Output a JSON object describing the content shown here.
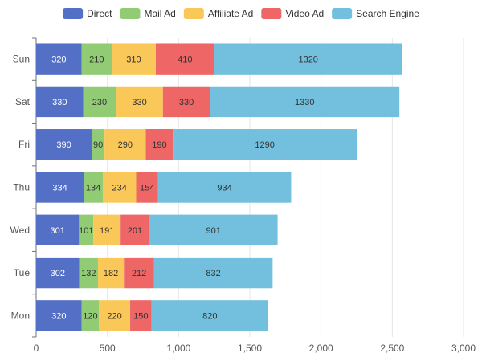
{
  "chart_data": {
    "type": "bar",
    "orientation": "horizontal",
    "stacked": true,
    "categories": [
      "Mon",
      "Tue",
      "Wed",
      "Thu",
      "Fri",
      "Sat",
      "Sun"
    ],
    "series": [
      {
        "name": "Direct",
        "color": "#5470c6",
        "label_color": "#ffffff",
        "values": [
          320,
          302,
          301,
          334,
          390,
          330,
          320
        ]
      },
      {
        "name": "Mail Ad",
        "color": "#91cc75",
        "label_color": "#333333",
        "values": [
          120,
          132,
          101,
          134,
          90,
          230,
          210
        ]
      },
      {
        "name": "Affiliate Ad",
        "color": "#fac858",
        "label_color": "#333333",
        "values": [
          220,
          182,
          191,
          234,
          290,
          330,
          310
        ]
      },
      {
        "name": "Video Ad",
        "color": "#ee6666",
        "label_color": "#333333",
        "values": [
          150,
          212,
          201,
          154,
          190,
          330,
          410
        ]
      },
      {
        "name": "Search Engine",
        "color": "#73c0de",
        "label_color": "#333333",
        "values": [
          820,
          832,
          901,
          934,
          1290,
          1330,
          1320
        ]
      }
    ],
    "xlim": [
      0,
      3000
    ],
    "xticks": [
      0,
      500,
      1000,
      1500,
      2000,
      2500,
      3000
    ],
    "xtick_labels": [
      "0",
      "500",
      "1,000",
      "1,500",
      "2,000",
      "2,500",
      "3,000"
    ],
    "grid": true,
    "legend_position": "top-center",
    "data_labels": true
  }
}
